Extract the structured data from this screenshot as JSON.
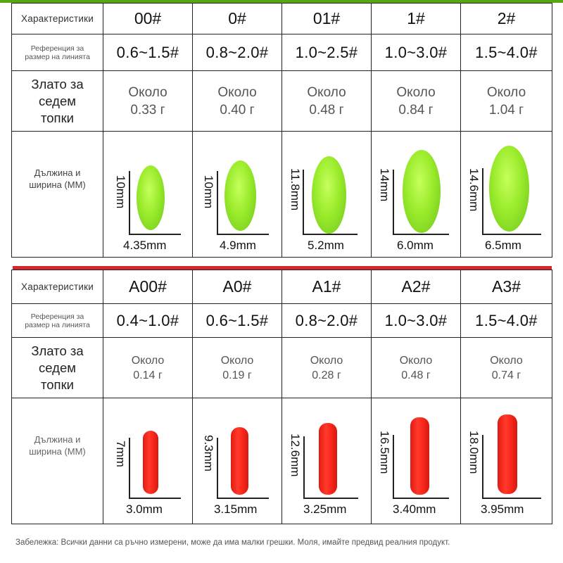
{
  "labels": {
    "characteristics": "Характеристики",
    "line_ref": "Референция за размер на линията",
    "weight": "Злато за седем топки",
    "dims": "Дължина и ширина (ММ)"
  },
  "green_table": {
    "sizes": [
      "00#",
      "0#",
      "01#",
      "1#",
      "2#"
    ],
    "line_ranges": [
      "0.6~1.5#",
      "0.8~2.0#",
      "1.0~2.5#",
      "1.0~3.0#",
      "1.5~4.0#"
    ],
    "weights": [
      {
        "approx": "Около",
        "value": "0.33 г"
      },
      {
        "approx": "Около",
        "value": "0.40 г"
      },
      {
        "approx": "Около",
        "value": "0.48 г"
      },
      {
        "approx": "Около",
        "value": "0.84 г"
      },
      {
        "approx": "Около",
        "value": "1.04 г"
      }
    ],
    "lengths": [
      "10mm",
      "10mm",
      "11.8mm",
      "14mm",
      "14.6mm"
    ],
    "widths": [
      "4.35mm",
      "4.9mm",
      "5.2mm",
      "6.0mm",
      "6.5mm"
    ],
    "float_color": "#8fe028"
  },
  "red_table": {
    "sizes": [
      "A00#",
      "A0#",
      "A1#",
      "A2#",
      "A3#"
    ],
    "line_ranges": [
      "0.4~1.0#",
      "0.6~1.5#",
      "0.8~2.0#",
      "1.0~3.0#",
      "1.5~4.0#"
    ],
    "weights": [
      {
        "approx": "Около",
        "value": "0.14 г"
      },
      {
        "approx": "Около",
        "value": "0.19 г"
      },
      {
        "approx": "Около",
        "value": "0.28 г"
      },
      {
        "approx": "Около",
        "value": "0.48 г"
      },
      {
        "approx": "Около",
        "value": "0.74 г"
      }
    ],
    "lengths": [
      "7mm",
      "9.3mm",
      "12.6mm",
      "16.5mm",
      "18.0mm"
    ],
    "widths": [
      "3.0mm",
      "3.15mm",
      "3.25mm",
      "3.40mm",
      "3.95mm"
    ],
    "float_color": "#ff2a1e"
  },
  "colors": {
    "accent_green": "#5aa516",
    "accent_red": "#d7262b"
  },
  "footnote": "Забележка: Всички данни са ръчно измерени, може да има малки грешки. Моля, имайте предвид реалния продукт."
}
